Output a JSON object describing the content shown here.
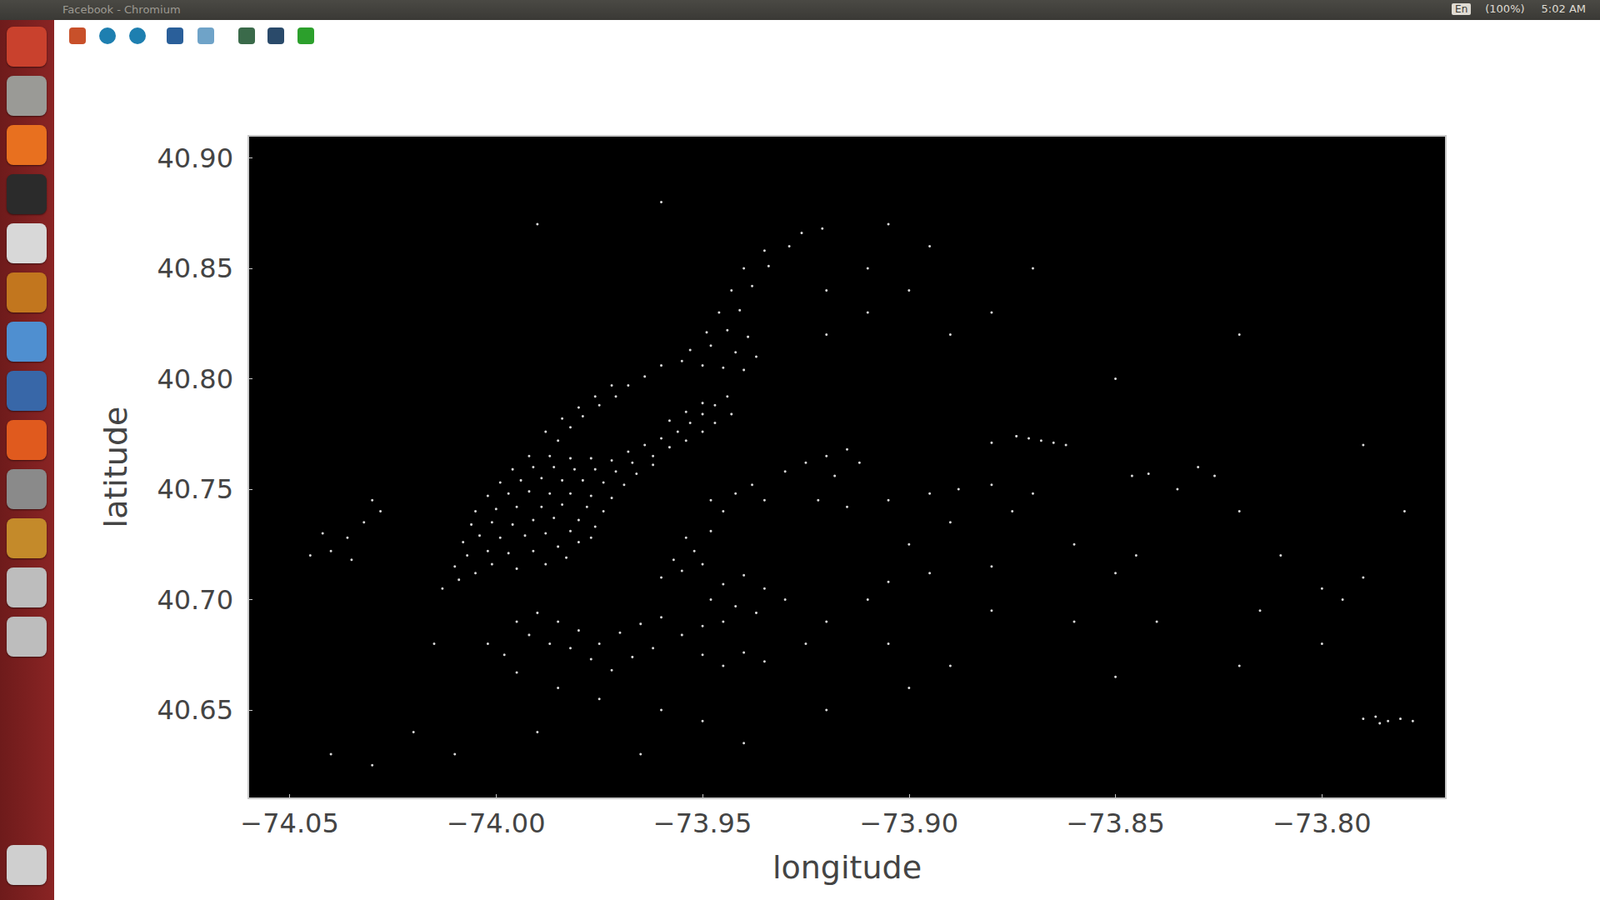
{
  "window": {
    "title": "Facebook - Chromium",
    "indicators": [
      "En",
      "(100%)"
    ],
    "clock": "5:02 AM"
  },
  "chart_data": {
    "type": "scatter",
    "xlabel": "longitude",
    "ylabel": "latitude",
    "xlim": [
      -74.06,
      -73.77
    ],
    "ylim": [
      40.61,
      40.91
    ],
    "xticks": [
      {
        "value": -74.05,
        "label": "−74.05"
      },
      {
        "value": -74.0,
        "label": "−74.00"
      },
      {
        "value": -73.95,
        "label": "−73.95"
      },
      {
        "value": -73.9,
        "label": "−73.90"
      },
      {
        "value": -73.85,
        "label": "−73.85"
      },
      {
        "value": -73.8,
        "label": "−73.80"
      }
    ],
    "yticks": [
      40.65,
      {
        "value": 40.7,
        "label": "40.70"
      },
      40.75,
      {
        "value": 40.8,
        "label": "40.80"
      },
      40.85,
      {
        "value": 40.9,
        "label": "40.90"
      }
    ],
    "grid": false,
    "marker": "circle",
    "color": "#ffffff",
    "x": [
      -74.013,
      -74.009,
      -74.005,
      -74.01,
      -74.001,
      -73.995,
      -73.988,
      -73.983,
      -74.007,
      -74.002,
      -73.997,
      -73.991,
      -73.985,
      -73.98,
      -74.008,
      -74.004,
      -73.999,
      -73.993,
      -73.988,
      -73.982,
      -73.977,
      -74.006,
      -74.001,
      -73.996,
      -73.991,
      -73.986,
      -73.98,
      -73.976,
      -74.005,
      -74.0,
      -73.995,
      -73.989,
      -73.984,
      -73.978,
      -73.974,
      -74.002,
      -73.997,
      -73.992,
      -73.987,
      -73.982,
      -73.977,
      -73.972,
      -73.999,
      -73.994,
      -73.989,
      -73.984,
      -73.979,
      -73.974,
      -73.969,
      -73.996,
      -73.991,
      -73.986,
      -73.981,
      -73.976,
      -73.971,
      -73.966,
      -73.992,
      -73.987,
      -73.982,
      -73.977,
      -73.972,
      -73.967,
      -73.962,
      -73.985,
      -73.982,
      -73.979,
      -73.975,
      -73.971,
      -73.968,
      -73.964,
      -73.988,
      -73.984,
      -73.98,
      -73.976,
      -73.972,
      -73.968,
      -73.964,
      -73.96,
      -73.956,
      -73.953,
      -73.95,
      -73.947,
      -73.944,
      -73.962,
      -73.958,
      -73.954,
      -73.95,
      -73.947,
      -73.943,
      -73.958,
      -73.954,
      -73.95,
      -73.96,
      -73.955,
      -73.95,
      -73.945,
      -73.94,
      -73.953,
      -73.948,
      -73.942,
      -73.937,
      -73.949,
      -73.944,
      -73.939,
      -73.946,
      -73.941,
      -73.943,
      -73.938,
      -73.94,
      -73.934,
      -73.935,
      -73.929,
      -73.926,
      -73.921,
      -73.995,
      -73.99,
      -73.985,
      -73.98,
      -73.992,
      -73.987,
      -73.982,
      -73.977,
      -73.975,
      -73.97,
      -73.965,
      -73.96,
      -73.972,
      -73.967,
      -73.962,
      -73.955,
      -73.95,
      -73.945,
      -73.96,
      -73.955,
      -73.95,
      -73.957,
      -73.952,
      -73.954,
      -73.948,
      -73.945,
      -73.94,
      -73.935,
      -73.948,
      -73.942,
      -73.937,
      -73.93,
      -73.95,
      -73.945,
      -73.94,
      -73.935,
      -73.925,
      -73.92,
      -74.002,
      -73.998,
      -73.995,
      -73.985,
      -73.975,
      -73.96,
      -73.95,
      -73.99,
      -73.965,
      -73.94,
      -74.01,
      -74.02,
      -74.015,
      -73.92,
      -73.9,
      -73.905,
      -73.89,
      -73.91,
      -73.948,
      -73.942,
      -73.938,
      -73.945,
      -73.935,
      -73.93,
      -73.925,
      -73.92,
      -73.915,
      -73.912,
      -73.918,
      -73.922,
      -73.915,
      -73.905,
      -73.895,
      -73.888,
      -73.88,
      -73.87,
      -73.875,
      -73.89,
      -73.9,
      -73.905,
      -73.895,
      -73.88,
      -73.86,
      -73.845,
      -73.85,
      -73.83,
      -73.826,
      -73.835,
      -73.82,
      -73.81,
      -73.8,
      -73.795,
      -73.79,
      -73.815,
      -73.84,
      -73.86,
      -73.88,
      -73.82,
      -73.85,
      -73.8,
      -73.78,
      -73.79,
      -73.874,
      -73.871,
      -73.868,
      -73.865,
      -73.862,
      -73.88,
      -73.846,
      -73.842,
      -73.79,
      -73.787,
      -73.784,
      -73.781,
      -73.778,
      -73.786,
      -73.92,
      -73.91,
      -73.9,
      -73.89,
      -73.88,
      -73.91,
      -73.895,
      -73.905,
      -73.92,
      -73.87,
      -74.03,
      -74.028,
      -74.032,
      -74.036,
      -74.04,
      -74.045,
      -74.035,
      -74.042,
      -74.04,
      -74.03,
      -73.99,
      -73.96,
      -73.85,
      -73.82
    ],
    "y": [
      40.705,
      40.709,
      40.712,
      40.715,
      40.716,
      40.714,
      40.716,
      40.719,
      40.72,
      40.722,
      40.721,
      40.722,
      40.724,
      40.726,
      40.726,
      40.729,
      40.728,
      40.729,
      40.73,
      40.731,
      40.728,
      40.734,
      40.735,
      40.734,
      40.736,
      40.737,
      40.736,
      40.733,
      40.74,
      40.741,
      40.742,
      40.742,
      40.743,
      40.742,
      40.74,
      40.747,
      40.748,
      40.749,
      40.748,
      40.748,
      40.747,
      40.746,
      40.753,
      40.754,
      40.755,
      40.754,
      40.754,
      40.753,
      40.752,
      40.759,
      40.76,
      40.76,
      40.759,
      40.759,
      40.758,
      40.757,
      40.765,
      40.765,
      40.764,
      40.764,
      40.763,
      40.762,
      40.761,
      40.772,
      40.778,
      40.783,
      40.788,
      40.792,
      40.797,
      40.801,
      40.776,
      40.782,
      40.787,
      40.792,
      40.797,
      40.767,
      40.77,
      40.773,
      40.776,
      40.78,
      40.784,
      40.788,
      40.792,
      40.765,
      40.769,
      40.772,
      40.776,
      40.78,
      40.784,
      40.781,
      40.785,
      40.789,
      40.806,
      40.808,
      40.806,
      40.805,
      40.804,
      40.813,
      40.815,
      40.812,
      40.81,
      40.821,
      40.822,
      40.819,
      40.83,
      40.831,
      40.84,
      40.842,
      40.85,
      40.851,
      40.858,
      40.86,
      40.866,
      40.868,
      40.69,
      40.694,
      40.69,
      40.686,
      40.684,
      40.68,
      40.678,
      40.673,
      40.68,
      40.685,
      40.689,
      40.692,
      40.668,
      40.674,
      40.678,
      40.684,
      40.688,
      40.69,
      40.71,
      40.713,
      40.716,
      40.718,
      40.722,
      40.728,
      40.731,
      40.707,
      40.711,
      40.705,
      40.7,
      40.697,
      40.694,
      40.7,
      40.675,
      40.67,
      40.676,
      40.672,
      40.68,
      40.69,
      40.68,
      40.675,
      40.667,
      40.66,
      40.655,
      40.65,
      40.645,
      40.64,
      40.63,
      40.635,
      40.63,
      40.64,
      40.68,
      40.65,
      40.66,
      40.68,
      40.67,
      40.7,
      40.745,
      40.748,
      40.752,
      40.74,
      40.745,
      40.758,
      40.762,
      40.765,
      40.768,
      40.762,
      40.756,
      40.745,
      40.742,
      40.745,
      40.748,
      40.75,
      40.752,
      40.748,
      40.74,
      40.735,
      40.725,
      40.708,
      40.712,
      40.715,
      40.725,
      40.72,
      40.712,
      40.76,
      40.756,
      40.75,
      40.74,
      40.72,
      40.705,
      40.7,
      40.71,
      40.695,
      40.69,
      40.69,
      40.695,
      40.67,
      40.665,
      40.68,
      40.74,
      40.77,
      40.774,
      40.773,
      40.772,
      40.771,
      40.77,
      40.771,
      40.756,
      40.757,
      40.646,
      40.647,
      40.645,
      40.646,
      40.645,
      40.644,
      40.82,
      40.83,
      40.84,
      40.82,
      40.83,
      40.85,
      40.86,
      40.87,
      40.84,
      40.85,
      40.745,
      40.74,
      40.735,
      40.728,
      40.722,
      40.72,
      40.718,
      40.73,
      40.63,
      40.625,
      40.87,
      40.88,
      40.8,
      40.82
    ]
  }
}
